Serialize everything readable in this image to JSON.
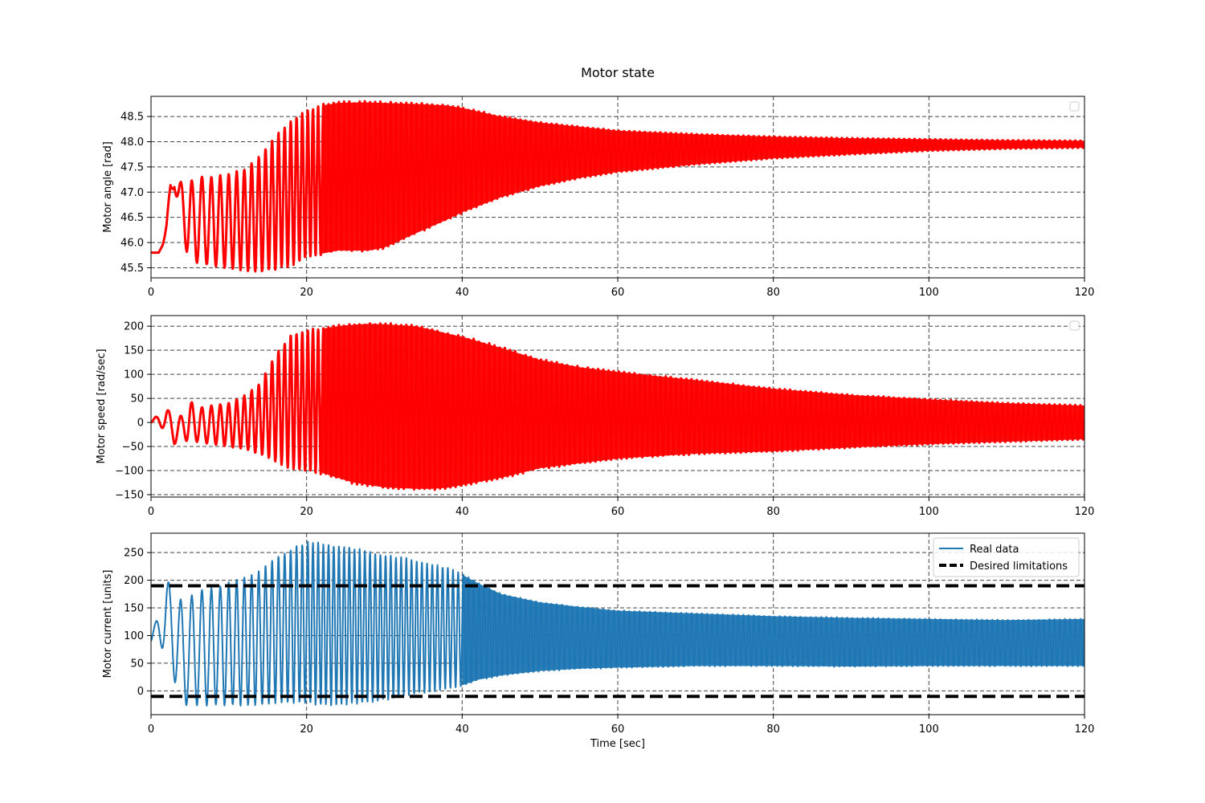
{
  "figure": {
    "title": "Motor state"
  },
  "chart_data": [
    {
      "type": "line",
      "panel": "motor-angle",
      "ylabel": "Motor angle [rad]",
      "xlabel": "",
      "xlim": [
        0,
        120
      ],
      "ylim": [
        45.3,
        48.9
      ],
      "xticks": [
        0,
        20,
        40,
        60,
        80,
        100,
        120
      ],
      "yticks": [
        45.5,
        46.0,
        46.5,
        47.0,
        47.5,
        48.0,
        48.5
      ],
      "ytick_labels": [
        "45.5",
        "46.0",
        "46.5",
        "47.0",
        "47.5",
        "48.0",
        "48.5"
      ],
      "grid": true,
      "legend": {
        "position": "upper-right",
        "entries": []
      },
      "series": [
        {
          "color": "#ff0000",
          "style": "oscillation",
          "linewidth": 3,
          "envelope": {
            "t": [
              0,
              1,
              1.5,
              2,
              2.5,
              3,
              4,
              5,
              6,
              8,
              10,
              12,
              14,
              16,
              18,
              20,
              22,
              24,
              26,
              28,
              30,
              34,
              38,
              40,
              45,
              50,
              55,
              60,
              70,
              80,
              90,
              100,
              110,
              120
            ],
            "upper": [
              45.8,
              45.8,
              46.0,
              46.4,
              47.2,
              47.2,
              47.2,
              47.2,
              47.3,
              47.3,
              47.35,
              47.45,
              47.7,
              48.1,
              48.4,
              48.6,
              48.72,
              48.77,
              48.78,
              48.78,
              48.77,
              48.75,
              48.72,
              48.67,
              48.5,
              48.38,
              48.3,
              48.22,
              48.15,
              48.1,
              48.07,
              48.05,
              48.03,
              48.02
            ],
            "lower": [
              45.8,
              45.8,
              45.95,
              46.2,
              46.9,
              47.1,
              46.2,
              45.55,
              45.6,
              45.55,
              45.5,
              45.45,
              45.42,
              45.48,
              45.55,
              45.7,
              45.78,
              45.84,
              45.84,
              45.84,
              45.9,
              46.18,
              46.45,
              46.6,
              46.9,
              47.12,
              47.28,
              47.4,
              47.55,
              47.67,
              47.75,
              47.82,
              47.86,
              47.88
            ]
          }
        }
      ]
    },
    {
      "type": "line",
      "panel": "motor-speed",
      "ylabel": "Motor speed [rad/sec]",
      "xlabel": "",
      "xlim": [
        0,
        120
      ],
      "ylim": [
        -155,
        222
      ],
      "xticks": [
        0,
        20,
        40,
        60,
        80,
        100,
        120
      ],
      "yticks": [
        -150,
        -100,
        -50,
        0,
        50,
        100,
        150,
        200
      ],
      "ytick_labels": [
        "−150",
        "−100",
        "−50",
        "0",
        "50",
        "100",
        "150",
        "200"
      ],
      "grid": true,
      "legend": {
        "position": "upper-right",
        "entries": []
      },
      "series": [
        {
          "color": "#ff0000",
          "style": "oscillation",
          "linewidth": 3,
          "envelope": {
            "t": [
              0,
              1,
              2,
              3,
              4,
              5,
              6,
              8,
              10,
              12,
              14,
              16,
              18,
              20,
              22,
              24,
              26,
              28,
              30,
              34,
              36,
              38,
              40,
              45,
              50,
              55,
              60,
              70,
              80,
              90,
              100,
              110,
              120
            ],
            "upper": [
              0,
              20,
              30,
              8,
              15,
              45,
              30,
              35,
              40,
              55,
              80,
              140,
              180,
              190,
              195,
              200,
              203,
              205,
              204,
              200,
              193,
              185,
              178,
              155,
              130,
              115,
              105,
              88,
              70,
              57,
              48,
              40,
              35
            ],
            "lower": [
              0,
              -5,
              -20,
              -45,
              -35,
              -40,
              -40,
              -45,
              -50,
              -55,
              -65,
              -80,
              -95,
              -100,
              -105,
              -115,
              -125,
              -130,
              -135,
              -138,
              -138,
              -136,
              -130,
              -115,
              -95,
              -85,
              -75,
              -65,
              -60,
              -52,
              -45,
              -40,
              -35
            ]
          }
        }
      ]
    },
    {
      "type": "line",
      "panel": "motor-current",
      "ylabel": "Motor current [units]",
      "xlabel": "Time [sec]",
      "xlim": [
        0,
        120
      ],
      "ylim": [
        -43,
        285
      ],
      "xticks": [
        0,
        20,
        40,
        60,
        80,
        100,
        120
      ],
      "yticks": [
        0,
        50,
        100,
        150,
        200,
        250
      ],
      "ytick_labels": [
        "0",
        "50",
        "100",
        "150",
        "200",
        "250"
      ],
      "grid": true,
      "legend": {
        "position": "upper-right",
        "entries": [
          "Real data",
          "Desired limitations"
        ]
      },
      "series": [
        {
          "name": "Real data",
          "color": "#1f77b4",
          "style": "oscillation",
          "linewidth": 2,
          "envelope": {
            "t": [
              0,
              1,
              2,
              3,
              4,
              6,
              8,
              10,
              12,
              14,
              16,
              18,
              20,
              22,
              24,
              26,
              28,
              30,
              32,
              34,
              36,
              38,
              40,
              42,
              45,
              50,
              55,
              60,
              70,
              80,
              90,
              100,
              110,
              120
            ],
            "upper": [
              90,
              150,
              200,
              185,
              160,
              180,
              185,
              195,
              205,
              215,
              240,
              255,
              268,
              265,
              262,
              258,
              250,
              245,
              240,
              235,
              228,
              222,
              210,
              195,
              175,
              160,
              152,
              145,
              140,
              135,
              132,
              130,
              128,
              130
            ],
            "lower": [
              90,
              90,
              60,
              20,
              -25,
              -25,
              -25,
              -25,
              -25,
              -25,
              -20,
              -20,
              -22,
              -25,
              -25,
              -22,
              -20,
              -15,
              -10,
              -5,
              0,
              5,
              10,
              20,
              28,
              36,
              40,
              42,
              45,
              45,
              44,
              45,
              45,
              45
            ]
          }
        },
        {
          "name": "Desired limitations",
          "color": "#000000",
          "style": "dashed",
          "linewidth": 4,
          "levels": [
            190,
            -10
          ]
        }
      ]
    }
  ]
}
